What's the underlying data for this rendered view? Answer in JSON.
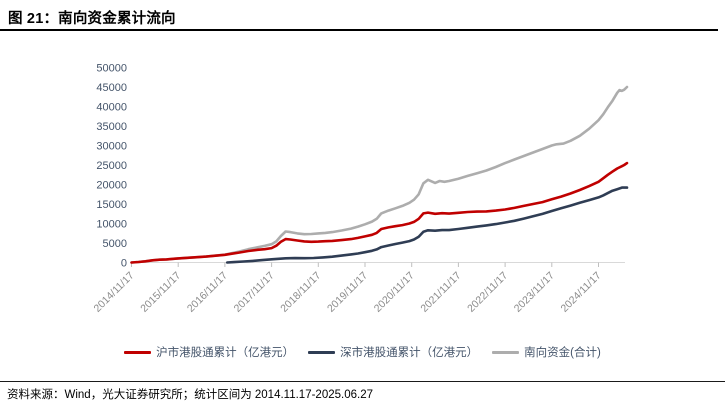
{
  "header": {
    "title": "图 21：南向资金累计流向"
  },
  "footer": {
    "source_text": "资料来源：Wind，光大证券研究所；统计区间为 2014.11.17-2025.06.27"
  },
  "chart_data": {
    "type": "line",
    "title": "南向资金累计流向",
    "unit": "亿港元",
    "grid": false,
    "legend_position": "bottom",
    "x_axis": {
      "tick_labels": [
        "2014/11/17",
        "2015/11/17",
        "2016/11/17",
        "2017/11/17",
        "2018/11/17",
        "2019/11/17",
        "2020/11/17",
        "2021/11/17",
        "2022/11/17",
        "2023/11/17",
        "2024/11/17"
      ],
      "range_note": "data extends ~0.6 year beyond last tick to 2025.06.27"
    },
    "y_axis": {
      "min": 0,
      "max": 50000,
      "step": 5000,
      "ticks": [
        0,
        5000,
        10000,
        15000,
        20000,
        25000,
        30000,
        35000,
        40000,
        45000,
        50000
      ]
    },
    "colors": {
      "axis_line": "#D9D9D9",
      "tick_mark": "#BFBFBF",
      "y_label": "#44546A",
      "x_label": "#8C8C8C"
    },
    "series": [
      {
        "name": "沪市港股通累计（亿港元）",
        "color": "#C00000",
        "points_format": "[years_since_2014_11_17, value_in_100M_HKD]",
        "points": [
          [
            0,
            0
          ],
          [
            0.15,
            120
          ],
          [
            0.3,
            300
          ],
          [
            0.45,
            560
          ],
          [
            0.6,
            720
          ],
          [
            0.75,
            800
          ],
          [
            0.9,
            950
          ],
          [
            1.0,
            1060
          ],
          [
            1.2,
            1200
          ],
          [
            1.4,
            1350
          ],
          [
            1.6,
            1520
          ],
          [
            1.8,
            1750
          ],
          [
            2.0,
            1980
          ],
          [
            2.15,
            2250
          ],
          [
            2.3,
            2550
          ],
          [
            2.5,
            2950
          ],
          [
            2.7,
            3250
          ],
          [
            2.85,
            3420
          ],
          [
            3.0,
            3700
          ],
          [
            3.1,
            4300
          ],
          [
            3.2,
            5300
          ],
          [
            3.3,
            6000
          ],
          [
            3.4,
            5900
          ],
          [
            3.55,
            5650
          ],
          [
            3.7,
            5400
          ],
          [
            3.85,
            5300
          ],
          [
            4.0,
            5350
          ],
          [
            4.15,
            5450
          ],
          [
            4.3,
            5550
          ],
          [
            4.5,
            5750
          ],
          [
            4.7,
            6000
          ],
          [
            4.85,
            6300
          ],
          [
            5.0,
            6700
          ],
          [
            5.15,
            7100
          ],
          [
            5.25,
            7600
          ],
          [
            5.35,
            8600
          ],
          [
            5.5,
            9000
          ],
          [
            5.65,
            9300
          ],
          [
            5.8,
            9600
          ],
          [
            5.95,
            10000
          ],
          [
            6.05,
            10400
          ],
          [
            6.15,
            11200
          ],
          [
            6.25,
            12600
          ],
          [
            6.35,
            12800
          ],
          [
            6.5,
            12500
          ],
          [
            6.65,
            12650
          ],
          [
            6.8,
            12550
          ],
          [
            7.0,
            12750
          ],
          [
            7.2,
            12950
          ],
          [
            7.4,
            13050
          ],
          [
            7.6,
            13100
          ],
          [
            7.8,
            13300
          ],
          [
            8.0,
            13600
          ],
          [
            8.2,
            14000
          ],
          [
            8.4,
            14500
          ],
          [
            8.6,
            15000
          ],
          [
            8.8,
            15500
          ],
          [
            9.0,
            16200
          ],
          [
            9.2,
            16900
          ],
          [
            9.4,
            17700
          ],
          [
            9.6,
            18600
          ],
          [
            9.8,
            19600
          ],
          [
            10.0,
            20700
          ],
          [
            10.1,
            21600
          ],
          [
            10.2,
            22500
          ],
          [
            10.3,
            23300
          ],
          [
            10.4,
            24100
          ],
          [
            10.5,
            24700
          ],
          [
            10.55,
            25000
          ],
          [
            10.61,
            25500
          ]
        ]
      },
      {
        "name": "深市港股通累计（亿港元）",
        "color": "#2F3D54",
        "points_format": "[years_since_2014_11_17, value_in_100M_HKD]",
        "points": [
          [
            2.05,
            0
          ],
          [
            2.2,
            100
          ],
          [
            2.4,
            250
          ],
          [
            2.6,
            420
          ],
          [
            2.8,
            620
          ],
          [
            3.0,
            820
          ],
          [
            3.15,
            950
          ],
          [
            3.3,
            1080
          ],
          [
            3.5,
            1120
          ],
          [
            3.7,
            1100
          ],
          [
            3.9,
            1150
          ],
          [
            4.1,
            1300
          ],
          [
            4.3,
            1500
          ],
          [
            4.5,
            1780
          ],
          [
            4.7,
            2080
          ],
          [
            4.85,
            2320
          ],
          [
            5.0,
            2650
          ],
          [
            5.15,
            3000
          ],
          [
            5.25,
            3350
          ],
          [
            5.35,
            3950
          ],
          [
            5.5,
            4350
          ],
          [
            5.65,
            4750
          ],
          [
            5.8,
            5100
          ],
          [
            5.95,
            5500
          ],
          [
            6.05,
            5900
          ],
          [
            6.15,
            6600
          ],
          [
            6.25,
            7900
          ],
          [
            6.35,
            8250
          ],
          [
            6.5,
            8150
          ],
          [
            6.65,
            8300
          ],
          [
            6.8,
            8300
          ],
          [
            7.0,
            8600
          ],
          [
            7.2,
            8900
          ],
          [
            7.4,
            9200
          ],
          [
            7.6,
            9500
          ],
          [
            7.8,
            9850
          ],
          [
            8.0,
            10250
          ],
          [
            8.2,
            10700
          ],
          [
            8.4,
            11250
          ],
          [
            8.6,
            11850
          ],
          [
            8.8,
            12450
          ],
          [
            9.0,
            13200
          ],
          [
            9.2,
            13900
          ],
          [
            9.4,
            14600
          ],
          [
            9.6,
            15300
          ],
          [
            9.8,
            16000
          ],
          [
            10.0,
            16700
          ],
          [
            10.1,
            17200
          ],
          [
            10.2,
            17800
          ],
          [
            10.3,
            18400
          ],
          [
            10.4,
            18800
          ],
          [
            10.5,
            19200
          ],
          [
            10.61,
            19200
          ]
        ]
      },
      {
        "name": "南向资金(合计)",
        "color": "#ADADAD",
        "points_format": "[years_since_2014_11_17, value_in_100M_HKD]",
        "points": [
          [
            0,
            0
          ],
          [
            0.15,
            120
          ],
          [
            0.3,
            300
          ],
          [
            0.45,
            560
          ],
          [
            0.6,
            720
          ],
          [
            0.75,
            800
          ],
          [
            0.9,
            950
          ],
          [
            1.0,
            1060
          ],
          [
            1.2,
            1200
          ],
          [
            1.4,
            1360
          ],
          [
            1.6,
            1540
          ],
          [
            1.8,
            1780
          ],
          [
            2.0,
            2000
          ],
          [
            2.15,
            2400
          ],
          [
            2.3,
            2800
          ],
          [
            2.5,
            3400
          ],
          [
            2.7,
            3900
          ],
          [
            2.85,
            4250
          ],
          [
            3.0,
            4700
          ],
          [
            3.1,
            5400
          ],
          [
            3.2,
            6800
          ],
          [
            3.3,
            7950
          ],
          [
            3.4,
            7800
          ],
          [
            3.55,
            7450
          ],
          [
            3.7,
            7250
          ],
          [
            3.85,
            7300
          ],
          [
            4.0,
            7450
          ],
          [
            4.15,
            7600
          ],
          [
            4.3,
            7800
          ],
          [
            4.5,
            8200
          ],
          [
            4.7,
            8700
          ],
          [
            4.85,
            9200
          ],
          [
            5.0,
            9800
          ],
          [
            5.15,
            10500
          ],
          [
            5.25,
            11200
          ],
          [
            5.35,
            12600
          ],
          [
            5.5,
            13300
          ],
          [
            5.65,
            13900
          ],
          [
            5.8,
            14500
          ],
          [
            5.95,
            15300
          ],
          [
            6.05,
            16100
          ],
          [
            6.15,
            17500
          ],
          [
            6.25,
            20300
          ],
          [
            6.35,
            21200
          ],
          [
            6.5,
            20400
          ],
          [
            6.6,
            20900
          ],
          [
            6.7,
            20700
          ],
          [
            6.8,
            20900
          ],
          [
            7.0,
            21500
          ],
          [
            7.2,
            22200
          ],
          [
            7.4,
            22900
          ],
          [
            7.6,
            23600
          ],
          [
            7.8,
            24500
          ],
          [
            8.0,
            25500
          ],
          [
            8.2,
            26400
          ],
          [
            8.4,
            27300
          ],
          [
            8.6,
            28200
          ],
          [
            8.8,
            29100
          ],
          [
            9.0,
            30000
          ],
          [
            9.1,
            30300
          ],
          [
            9.25,
            30500
          ],
          [
            9.4,
            31200
          ],
          [
            9.6,
            32500
          ],
          [
            9.8,
            34300
          ],
          [
            10.0,
            36500
          ],
          [
            10.1,
            38000
          ],
          [
            10.2,
            39800
          ],
          [
            10.3,
            41500
          ],
          [
            10.4,
            43500
          ],
          [
            10.45,
            44200
          ],
          [
            10.5,
            44000
          ],
          [
            10.55,
            44300
          ],
          [
            10.61,
            45000
          ]
        ]
      }
    ]
  }
}
